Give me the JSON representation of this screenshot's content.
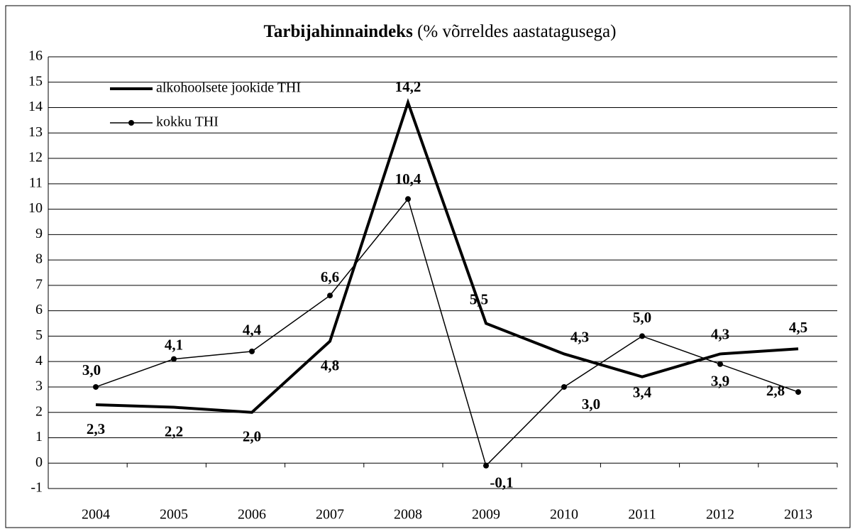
{
  "chart_data": {
    "type": "line",
    "title": "Tarbijahinnaindeks",
    "title_note": "(% võrreldes aastatagusega)",
    "categories": [
      "2004",
      "2005",
      "2006",
      "2007",
      "2008",
      "2009",
      "2010",
      "2011",
      "2012",
      "2013"
    ],
    "series": [
      {
        "name": "alkohoolsete jookide THI",
        "color": "#000000",
        "values": [
          2.3,
          2.2,
          2.0,
          4.8,
          14.2,
          5.5,
          4.3,
          3.4,
          4.3,
          4.5
        ],
        "value_labels": [
          "2,3",
          "2,2",
          "2,0",
          "4,8",
          "14,2",
          "5,5",
          "4,3",
          "3,4",
          "4,3",
          "4,5"
        ]
      },
      {
        "name": "kokku THI",
        "color": "#000000",
        "values": [
          3.0,
          4.1,
          4.4,
          6.6,
          10.4,
          -0.1,
          3.0,
          5.0,
          3.9,
          2.8
        ],
        "value_labels": [
          "3,0",
          "4,1",
          "4,4",
          "6,6",
          "10,4",
          "-0,1",
          "3,0",
          "5,0",
          "3,9",
          "2,8"
        ]
      }
    ],
    "ylim": [
      -1,
      16
    ],
    "yticks": [
      -1,
      0,
      1,
      2,
      3,
      4,
      5,
      6,
      7,
      8,
      9,
      10,
      11,
      12,
      13,
      14,
      15,
      16
    ],
    "grid": true,
    "legend": "upper left"
  }
}
